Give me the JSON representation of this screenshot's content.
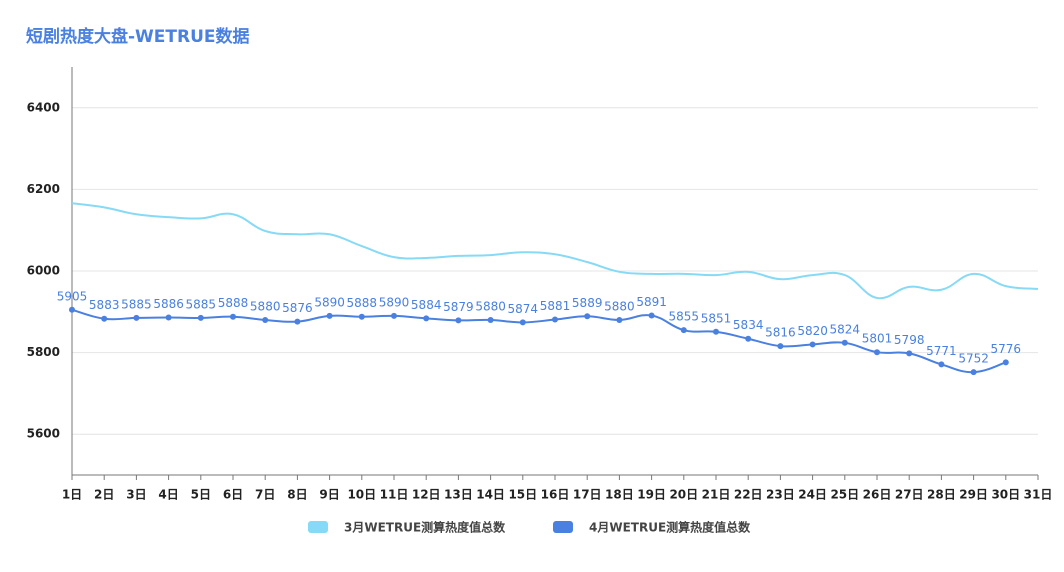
{
  "chart_data": {
    "type": "line",
    "title": "短剧热度大盘-WETRUE数据",
    "categories": [
      "1日",
      "2日",
      "3日",
      "4日",
      "5日",
      "6日",
      "7日",
      "8日",
      "9日",
      "10日",
      "11日",
      "12日",
      "13日",
      "14日",
      "15日",
      "16日",
      "17日",
      "18日",
      "19日",
      "20日",
      "21日",
      "22日",
      "23日",
      "24日",
      "25日",
      "26日",
      "27日",
      "28日",
      "29日",
      "30日",
      "31日"
    ],
    "series": [
      {
        "name": "3月WETRUE测算热度值总数",
        "color": "#86daf5",
        "values": [
          6166,
          6156,
          6139,
          6132,
          6129,
          6139,
          6098,
          6090,
          6090,
          6061,
          6034,
          6032,
          6037,
          6039,
          6046,
          6041,
          6022,
          5998,
          5993,
          5993,
          5990,
          5998,
          5980,
          5990,
          5990,
          5934,
          5961,
          5954,
          5993,
          5963,
          5956
        ]
      },
      {
        "name": "4月WETRUE测算热度值总数",
        "color": "#4a80e0",
        "show_labels": true,
        "values": [
          5905,
          5883,
          5885,
          5886,
          5885,
          5888,
          5880,
          5876,
          5890,
          5888,
          5890,
          5884,
          5879,
          5880,
          5874,
          5881,
          5889,
          5880,
          5891,
          5855,
          5851,
          5834,
          5816,
          5820,
          5824,
          5801,
          5798,
          5771,
          5752,
          5776,
          null
        ]
      }
    ],
    "ylim": [
      5500,
      6500
    ],
    "yticks": [
      5600,
      5800,
      6000,
      6200,
      6400
    ],
    "grid": true,
    "legend": "bottom"
  }
}
